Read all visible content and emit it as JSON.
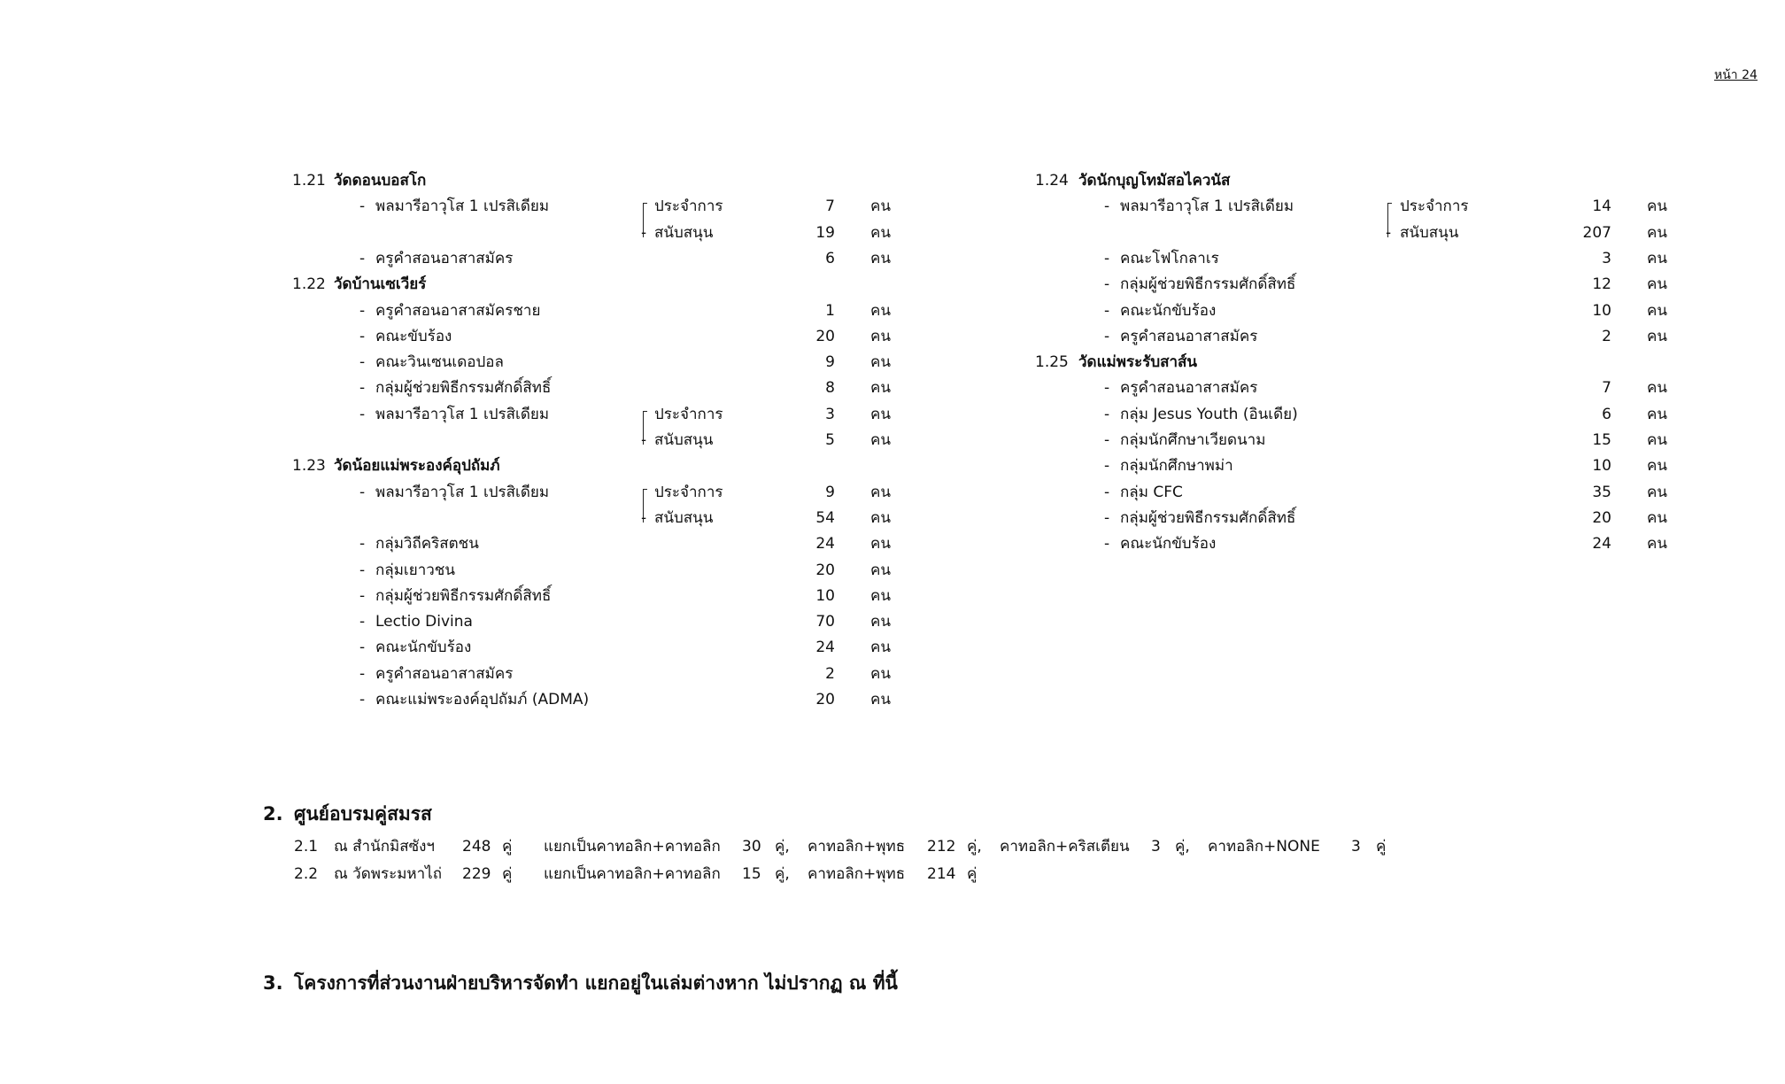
{
  "page_number": "หน้า 24",
  "unit": "คน",
  "columns": [
    [
      {
        "num": "1.21",
        "title": "วัดดอนบอสโก",
        "items": [
          {
            "label": "พลมารีอาวุโส 1 เปรสิเดียม",
            "split": [
              {
                "label": "ประจำการ",
                "value": "7"
              },
              {
                "label": "สนับสนุน",
                "value": "19"
              }
            ]
          },
          {
            "label": "ครูคำสอนอาสาสมัคร",
            "value": "6"
          }
        ]
      },
      {
        "num": "1.22",
        "title": "วัดบ้านเซเวียร์",
        "items": [
          {
            "label": "ครูคำสอนอาสาสมัครชาย",
            "value": "1"
          },
          {
            "label": "คณะขับร้อง",
            "value": "20"
          },
          {
            "label": "คณะวินเซนเดอปอล",
            "value": "9"
          },
          {
            "label": "กลุ่มผู้ช่วยพิธีกรรมศักดิ์สิทธิ์",
            "value": "8"
          },
          {
            "label": "พลมารีอาวุโส 1 เปรสิเดียม",
            "split": [
              {
                "label": "ประจำการ",
                "value": "3"
              },
              {
                "label": "สนับสนุน",
                "value": "5"
              }
            ]
          }
        ]
      },
      {
        "num": "1.23",
        "title": "วัดน้อยแม่พระองค์อุปถัมภ์",
        "items": [
          {
            "label": "พลมารีอาวุโส 1 เปรสิเดียม",
            "split": [
              {
                "label": "ประจำการ",
                "value": "9"
              },
              {
                "label": "สนับสนุน",
                "value": "54"
              }
            ]
          },
          {
            "label": "กลุ่มวิถีคริสตชน",
            "value": "24"
          },
          {
            "label": "กลุ่มเยาวชน",
            "value": "20"
          },
          {
            "label": "กลุ่มผู้ช่วยพิธีกรรมศักดิ์สิทธิ์",
            "value": "10"
          },
          {
            "label": "Lectio Divina",
            "value": "70"
          },
          {
            "label": "คณะนักขับร้อง",
            "value": "24"
          },
          {
            "label": "ครูคำสอนอาสาสมัคร",
            "value": "2"
          },
          {
            "label": "คณะแม่พระองค์อุปถัมภ์ (ADMA)",
            "value": "20"
          }
        ]
      }
    ],
    [
      {
        "num": "1.24",
        "title": "วัดนักบุญโทมัสอไควนัส",
        "items": [
          {
            "label": "พลมารีอาวุโส 1 เปรสิเดียม",
            "split": [
              {
                "label": "ประจำการ",
                "value": "14"
              },
              {
                "label": "สนับสนุน",
                "value": "207"
              }
            ]
          },
          {
            "label": "คณะโฟโกลาเร",
            "value": "3"
          },
          {
            "label": "กลุ่มผู้ช่วยพิธีกรรมศักดิ์สิทธิ์",
            "value": "12"
          },
          {
            "label": "คณะนักขับร้อง",
            "value": "10"
          },
          {
            "label": "ครูคำสอนอาสาสมัคร",
            "value": "2"
          }
        ]
      },
      {
        "num": "1.25",
        "title": "วัดแม่พระรับสาส์น",
        "items": [
          {
            "label": "ครูคำสอนอาสาสมัคร",
            "value": "7"
          },
          {
            "label": "กลุ่ม Jesus Youth (อินเดีย)",
            "value": "6"
          },
          {
            "label": "กลุ่มนักศึกษาเวียดนาม",
            "value": "15"
          },
          {
            "label": "กลุ่มนักศึกษาพม่า",
            "value": "10"
          },
          {
            "label": "กลุ่ม CFC",
            "value": "35"
          },
          {
            "label": "กลุ่มผู้ช่วยพิธีกรรมศักดิ์สิทธิ์",
            "value": "20"
          },
          {
            "label": "คณะนักขับร้อง",
            "value": "24"
          }
        ]
      }
    ]
  ],
  "section2": {
    "num": "2.",
    "title": "ศูนย์อบรมคู่สมรส",
    "rows": [
      [
        "2.1",
        "ณ สำนักมิสซังฯ",
        "248",
        "คู่",
        "แยกเป็นคาทอลิก+คาทอลิก",
        "30",
        "คู่,",
        "คาทอลิก+พุทธ",
        "212",
        "คู่,",
        "คาทอลิก+คริสเตียน",
        "3",
        "คู่,",
        "คาทอลิก+NONE",
        "3",
        "คู่"
      ],
      [
        "2.2",
        "ณ วัดพระมหาไถ่",
        "229",
        "คู่",
        "แยกเป็นคาทอลิก+คาทอลิก",
        "15",
        "คู่,",
        "คาทอลิก+พุทธ",
        "214",
        "คู่"
      ]
    ]
  },
  "section3": {
    "num": "3.",
    "title": "โครงการที่ส่วนงานฝ่ายบริหารจัดทำ แยกอยู่ในเล่มต่างหาก ไม่ปรากฏ ณ ที่นี้"
  }
}
